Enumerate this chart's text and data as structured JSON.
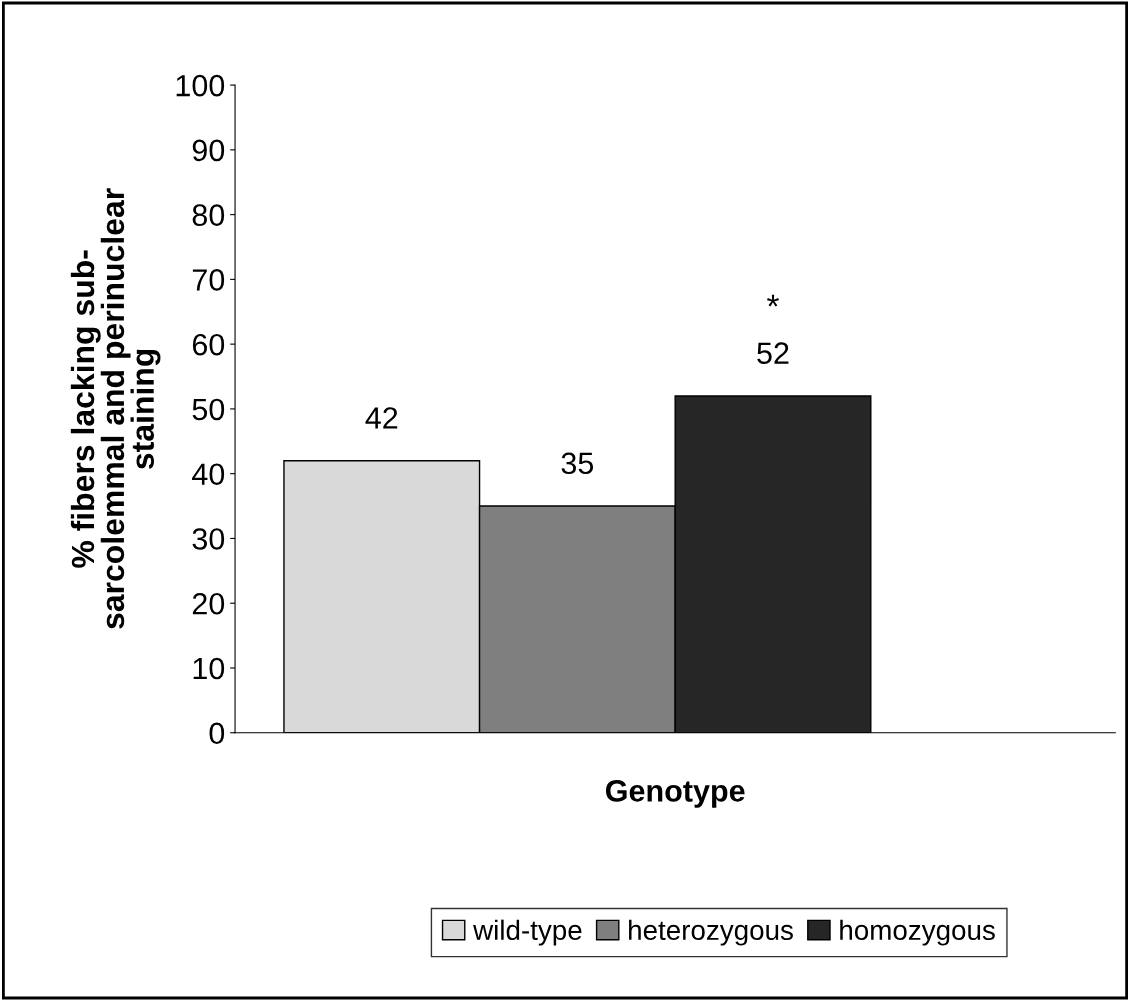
{
  "chart_data": {
    "type": "bar",
    "xlabel": "Genotype",
    "ylabel": "% fibers lacking sub-\nsarcolemmal and perinuclear\nstaining",
    "categories": [
      null
    ],
    "series": [
      {
        "name": "wild-type",
        "color": "#d9d9d9",
        "values": [
          42
        ]
      },
      {
        "name": "heterozygous",
        "color": "#7f7f7f",
        "values": [
          35
        ]
      },
      {
        "name": "homozygous",
        "color": "#262626",
        "values": [
          52
        ]
      }
    ],
    "ylim": [
      0,
      100
    ],
    "yticks": [
      0,
      10,
      20,
      30,
      40,
      50,
      60,
      70,
      80,
      90,
      100
    ],
    "data_labels": true,
    "annotations": [
      "*"
    ],
    "legend": "bottom",
    "grid": false
  }
}
